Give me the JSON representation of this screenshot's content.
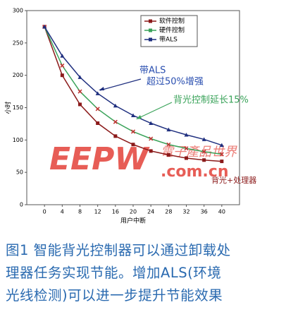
{
  "chart_data": {
    "type": "line",
    "x_label": "用户中断",
    "y_label": "小时",
    "x": [
      0,
      4,
      8,
      12,
      16,
      20,
      24,
      28,
      32,
      36,
      40
    ],
    "series": [
      {
        "name": "软件控制",
        "color": "#8b1a1a",
        "values": [
          275,
          200,
          155,
          126,
          106,
          93,
          83,
          77,
          72,
          69,
          67
        ]
      },
      {
        "name": "硬件控制",
        "color": "#3aa35a",
        "values": [
          275,
          215,
          175,
          148,
          128,
          113,
          102,
          93,
          87,
          82,
          78
        ]
      },
      {
        "name": "带ALS",
        "color": "#1f2f7f",
        "values": [
          275,
          230,
          197,
          172,
          153,
          138,
          126,
          116,
          108,
          101,
          92
        ]
      }
    ],
    "xlim": [
      -4,
      44
    ],
    "xticks": [
      0,
      4,
      8,
      12,
      16,
      20,
      24,
      28,
      32,
      36,
      40
    ],
    "ylim": [
      0,
      300
    ],
    "yticks": [
      0,
      50,
      100,
      150,
      200,
      250,
      300
    ],
    "annotations": [
      {
        "lines": [
          "带ALS",
          "超过50%增强"
        ],
        "color": "#2a4fb0"
      },
      {
        "lines": [
          "背光控制延长15%"
        ],
        "color": "#3aa35a"
      },
      {
        "lines": [
          "背光+处理器"
        ],
        "color": "#8b1a1a"
      }
    ]
  },
  "watermark": {
    "logo": "EEPW",
    "domain": ".com.cn",
    "brand": "電子產品世界"
  },
  "caption": {
    "lines": [
      "图1  智能背光控制器可以通过卸载处",
      "理器任务实现节能。增加ALS(环境",
      "光线检测)可以进一步提升节能效果"
    ]
  }
}
